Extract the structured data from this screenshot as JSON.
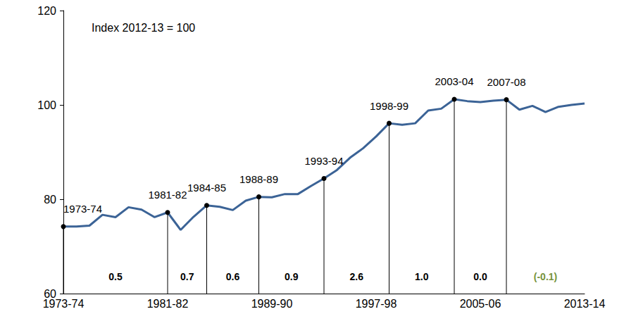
{
  "chart_data": {
    "type": "line",
    "subtitle": "Index 2012-13 = 100",
    "categories": [
      "1973-74",
      null,
      null,
      null,
      null,
      null,
      null,
      null,
      "1981-82",
      null,
      null,
      null,
      null,
      null,
      null,
      null,
      "1989-90",
      null,
      null,
      null,
      null,
      null,
      null,
      null,
      "1997-98",
      null,
      null,
      null,
      null,
      null,
      null,
      null,
      "2005-06",
      null,
      null,
      null,
      null,
      null,
      null,
      null,
      "2013-14"
    ],
    "values": [
      74.2,
      74.2,
      74.4,
      76.7,
      76.2,
      78.3,
      77.8,
      76.2,
      77.2,
      73.5,
      76.3,
      78.7,
      78.4,
      77.7,
      79.7,
      80.5,
      80.4,
      81.1,
      81.1,
      82.8,
      84.4,
      86.2,
      88.8,
      90.8,
      93.3,
      96.1,
      95.8,
      96.1,
      98.8,
      99.2,
      101.2,
      100.8,
      100.6,
      100.9,
      101.1,
      99.0,
      99.8,
      98.5,
      99.6,
      100.0,
      100.3
    ],
    "color": "#3b6396",
    "ylim": [
      60,
      120
    ],
    "yticks": [
      60,
      80,
      100,
      120
    ],
    "grid": false,
    "annotations": [
      {
        "index": 0,
        "label": "1973-74"
      },
      {
        "index": 8,
        "label": "1981-82"
      },
      {
        "index": 11,
        "label": "1984-85"
      },
      {
        "index": 15,
        "label": "1988-89"
      },
      {
        "index": 20,
        "label": "1993-94"
      },
      {
        "index": 25,
        "label": "1998-99"
      },
      {
        "index": 30,
        "label": "2003-04"
      },
      {
        "index": 34,
        "label": "2007-08"
      }
    ],
    "growth_rates": [
      0.5,
      0.7,
      0.6,
      0.9,
      2.6,
      {
        "value": 1.0,
        "label": "1.0"
      },
      {
        "value": 0.0,
        "label": "0.0"
      },
      {
        "value": -0.1,
        "label": "(-0.1)",
        "color": "#77933c"
      }
    ]
  }
}
